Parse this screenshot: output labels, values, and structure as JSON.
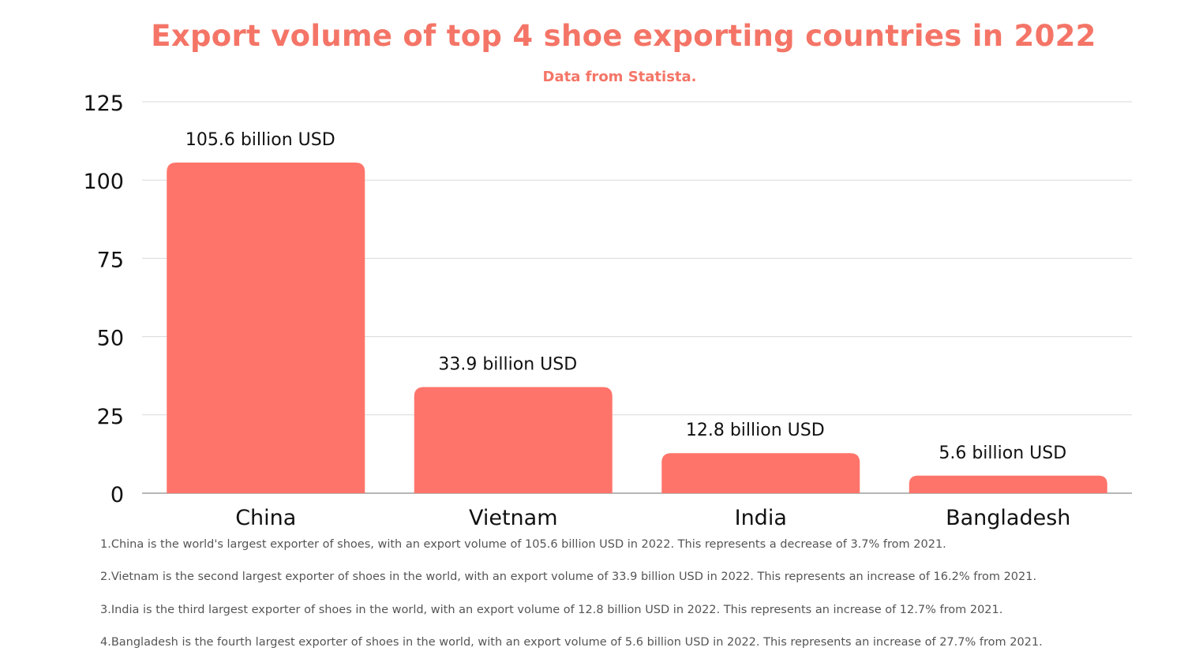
{
  "chart_data": {
    "type": "bar",
    "title": "Export volume of top 4 shoe exporting countries in 2022",
    "subtitle": "Data from Statista.",
    "categories": [
      "China",
      "Vietnam",
      "India",
      "Bangladesh"
    ],
    "values": [
      105.6,
      33.9,
      12.8,
      5.6
    ],
    "data_labels": [
      "105.6 billion USD",
      "33.9 billion USD",
      "12.8 billion USD",
      "5.6 billion USD"
    ],
    "yticks": [
      0,
      25,
      50,
      75,
      100,
      125
    ],
    "ylim": [
      0,
      125
    ],
    "xlabel": "",
    "ylabel": "",
    "grid": true,
    "bar_color": "#ff746a",
    "title_color": "#f47567"
  },
  "notes": [
    "1.China is the world's largest exporter of shoes, with an export volume of 105.6 billion USD in 2022. This represents a decrease of 3.7% from 2021.",
    "2.Vietnam is the second largest exporter of shoes in the world, with an export volume of 33.9 billion USD in 2022. This represents an increase of 16.2% from 2021.",
    "3.India is the third largest exporter of shoes in the world, with an export volume of 12.8 billion USD in 2022. This represents an increase of 12.7% from 2021.",
    "4.Bangladesh is the fourth largest exporter of shoes in the world, with an export volume of 5.6 billion USD in 2022. This represents an increase of 27.7% from 2021."
  ]
}
